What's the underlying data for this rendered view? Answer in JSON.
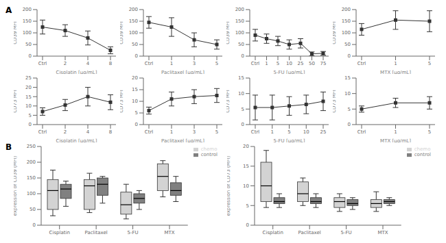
{
  "chart_data": [
    {
      "type": "line",
      "annotation": "A",
      "xlabel": "Cisplatin [µg/mL]",
      "ylabel": "CD39 MFI",
      "categories": [
        "Ctrl",
        "2",
        "4",
        "8"
      ],
      "values": [
        125,
        110,
        78,
        25
      ],
      "yerr": [
        30,
        25,
        30,
        15
      ],
      "ylim": [
        0,
        200
      ],
      "yticks": [
        0,
        50,
        100,
        150,
        200
      ],
      "color": "#333333",
      "marker": "square",
      "grid": false
    },
    {
      "type": "line",
      "xlabel": "Paclitaxel [µg/mL]",
      "ylabel": "CD39 MFI",
      "categories": [
        "Ctrl",
        "1",
        "3",
        "5"
      ],
      "values": [
        145,
        125,
        70,
        50
      ],
      "yerr": [
        25,
        40,
        30,
        20
      ],
      "ylim": [
        0,
        200
      ],
      "yticks": [
        0,
        50,
        100,
        150,
        200
      ],
      "color": "#333333",
      "marker": "square",
      "grid": false
    },
    {
      "type": "line",
      "xlabel": "5-FU [µg/mL]",
      "ylabel": "CD39 MFI",
      "categories": [
        "Ctrl",
        "1",
        "5",
        "10",
        "25",
        "50",
        "75"
      ],
      "values": [
        90,
        75,
        65,
        50,
        55,
        10,
        12
      ],
      "yerr": [
        25,
        20,
        20,
        20,
        20,
        8,
        8
      ],
      "ylim": [
        0,
        200
      ],
      "yticks": [
        0,
        50,
        100,
        150,
        200
      ],
      "color": "#333333",
      "marker": "square",
      "grid": false
    },
    {
      "type": "line",
      "xlabel": "MTX [µg/mL]",
      "ylabel": "CD39 MFI",
      "categories": [
        "Ctrl",
        "1",
        "5"
      ],
      "values": [
        115,
        155,
        150
      ],
      "yerr": [
        25,
        40,
        45
      ],
      "ylim": [
        0,
        200
      ],
      "yticks": [
        0,
        50,
        100,
        150,
        200
      ],
      "color": "#333333",
      "marker": "square",
      "grid": false
    },
    {
      "type": "line",
      "xlabel": "Cisplatin [µg/mL]",
      "ylabel": "CD73 MFI",
      "categories": [
        "Ctrl",
        "2",
        "4",
        "8"
      ],
      "values": [
        7,
        10.5,
        15,
        12
      ],
      "yerr": [
        2,
        3,
        5,
        4
      ],
      "ylim": [
        0,
        25
      ],
      "yticks": [
        0,
        5,
        10,
        15,
        20,
        25
      ],
      "color": "#333333",
      "marker": "square",
      "grid": false
    },
    {
      "type": "line",
      "xlabel": "Paclitaxel [µg/mL]",
      "ylabel": "CD73 MFI",
      "categories": [
        "Ctrl",
        "1",
        "3",
        "5"
      ],
      "values": [
        6,
        11,
        12,
        12.5
      ],
      "yerr": [
        1.5,
        3,
        3,
        3
      ],
      "ylim": [
        0,
        20
      ],
      "yticks": [
        0,
        5,
        10,
        15,
        20
      ],
      "color": "#333333",
      "marker": "square",
      "grid": false
    },
    {
      "type": "line",
      "xlabel": "5-FU [µg/mL]",
      "ylabel": "CD73 MFI",
      "categories": [
        "Ctrl",
        "1",
        "5",
        "10",
        "25"
      ],
      "values": [
        5.5,
        5.5,
        6,
        6.5,
        7.5
      ],
      "yerr": [
        4,
        4,
        3,
        3,
        3
      ],
      "ylim": [
        0,
        15
      ],
      "yticks": [
        0,
        5,
        10,
        15
      ],
      "color": "#333333",
      "marker": "square",
      "grid": false
    },
    {
      "type": "line",
      "xlabel": "MTX [µg/mL]",
      "ylabel": "CD73 MFI",
      "categories": [
        "Ctrl",
        "1",
        "5"
      ],
      "values": [
        5,
        7,
        7
      ],
      "yerr": [
        1,
        1.5,
        2
      ],
      "ylim": [
        0,
        15
      ],
      "yticks": [
        0,
        5,
        10,
        15
      ],
      "color": "#333333",
      "marker": "square",
      "grid": false
    },
    {
      "type": "box",
      "annotation": "B",
      "ylabel": "expression of CD39 (MFI)",
      "categories": [
        "Cisplatin",
        "Paclitaxel",
        "5-FU",
        "MTX"
      ],
      "ylim": [
        0,
        250
      ],
      "yticks": [
        0,
        50,
        100,
        150,
        200,
        250
      ],
      "legend": "upper right",
      "grid": false,
      "series": [
        {
          "name": "chemo",
          "color": "#d3d3d3",
          "q1": [
            50,
            50,
            35,
            110
          ],
          "median": [
            110,
            125,
            65,
            155
          ],
          "q3": [
            145,
            145,
            105,
            195
          ],
          "min": [
            30,
            40,
            20,
            90
          ],
          "max": [
            175,
            165,
            130,
            205
          ]
        },
        {
          "name": "control",
          "color": "#808080",
          "q1": [
            85,
            95,
            70,
            95
          ],
          "median": [
            115,
            130,
            85,
            110
          ],
          "q3": [
            130,
            150,
            100,
            135
          ],
          "min": [
            60,
            70,
            50,
            75
          ],
          "max": [
            140,
            155,
            110,
            155
          ]
        }
      ]
    },
    {
      "type": "box",
      "ylabel": "expression of CD73 (MFI)",
      "categories": [
        "Cisplatin",
        "Paclitaxel",
        "5-FU",
        "MTX"
      ],
      "ylim": [
        0,
        20
      ],
      "yticks": [
        0,
        5,
        10,
        15,
        20
      ],
      "legend": "upper right",
      "grid": false,
      "series": [
        {
          "name": "chemo",
          "color": "#d3d3d3",
          "q1": [
            6,
            6,
            4.5,
            4.5
          ],
          "median": [
            10,
            8,
            6,
            5.5
          ],
          "q3": [
            16,
            11,
            7,
            6.5
          ],
          "min": [
            4.5,
            5,
            3.5,
            3.5
          ],
          "max": [
            19,
            12,
            8,
            8.5
          ]
        },
        {
          "name": "control",
          "color": "#808080",
          "q1": [
            5.5,
            5.5,
            5,
            5.5
          ],
          "median": [
            6,
            6,
            5.5,
            6
          ],
          "q3": [
            7,
            7,
            6.5,
            6.5
          ],
          "min": [
            4.5,
            4.5,
            4,
            5
          ],
          "max": [
            8,
            8,
            7,
            7
          ]
        }
      ]
    }
  ]
}
